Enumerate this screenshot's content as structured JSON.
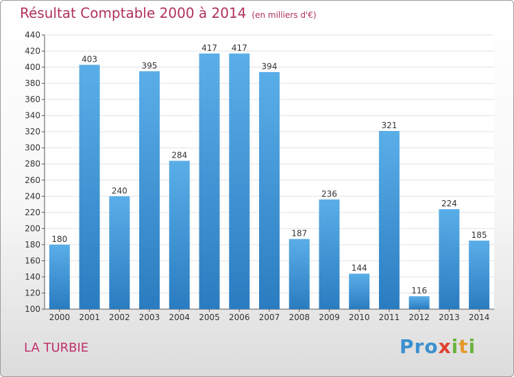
{
  "header": {
    "title": "Résultat Comptable 2000 à 2014",
    "unit": "(en milliers d'€)"
  },
  "footer": {
    "commune": "LA TURBIE",
    "logo": {
      "part1": "Pro",
      "part2": "x",
      "part3": "i",
      "part4": "t",
      "part5": "i"
    }
  },
  "colors": {
    "title": "#b0305e",
    "bar_top": "#5aaee8",
    "bar_bottom": "#2a7cc0",
    "grid": "#e2e2e2"
  },
  "chart_data": {
    "type": "bar",
    "title": "Résultat Comptable 2000 à 2014",
    "xlabel": "",
    "ylabel": "",
    "categories": [
      "2000",
      "2001",
      "2002",
      "2003",
      "2004",
      "2005",
      "2006",
      "2007",
      "2008",
      "2009",
      "2010",
      "2011",
      "2012",
      "2013",
      "2014"
    ],
    "values": [
      180,
      403,
      240,
      395,
      284,
      417,
      417,
      394,
      187,
      236,
      144,
      321,
      116,
      224,
      185
    ],
    "ylim": [
      100,
      440
    ],
    "yticks": [
      100,
      120,
      140,
      160,
      180,
      200,
      220,
      240,
      260,
      280,
      300,
      320,
      340,
      360,
      380,
      400,
      420,
      440
    ],
    "grid": true,
    "legend": "none"
  }
}
